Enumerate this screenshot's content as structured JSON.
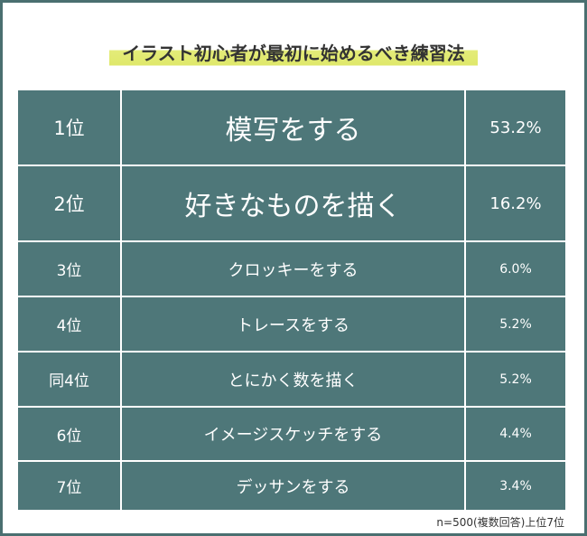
{
  "header": {
    "title": "イラスト初心者が最初に始めるべき練習法"
  },
  "table": {
    "rows": [
      [
        "1位",
        "模写をする",
        "53.2%"
      ],
      [
        "2位",
        "好きなものを描く",
        "16.2%"
      ],
      [
        "3位",
        "クロッキーをする",
        "6.0%"
      ],
      [
        "4位",
        "トレースをする",
        "5.2%"
      ],
      [
        "同4位",
        "とにかく数を描く",
        "5.2%"
      ],
      [
        "6位",
        "イメージスケッチをする",
        "4.4%"
      ],
      [
        "7位",
        "デッサンをする",
        "3.4%"
      ]
    ]
  },
  "footnote": "n=500(複数回答)上位7位"
}
